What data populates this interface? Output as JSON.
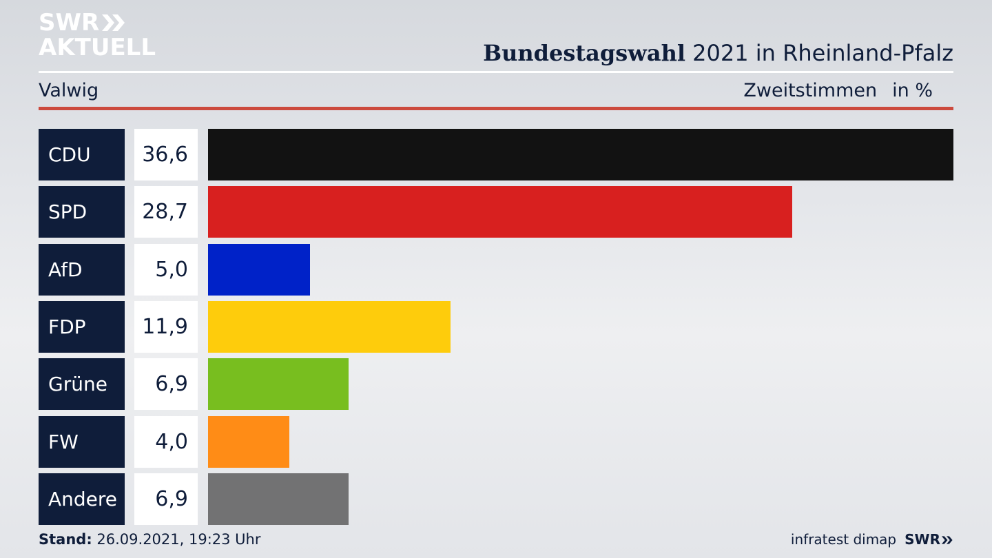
{
  "brand": {
    "line1": "SWR",
    "line2": "AKTUELL",
    "logo_color": "#ffffff"
  },
  "header": {
    "title_bold": "Bundestagswahl",
    "title_rest": " 2021 in Rheinland-Pfalz",
    "region": "Valwig",
    "measure": "Zweitstimmen",
    "unit": "in %"
  },
  "colors": {
    "rule_red": "#cc4a3d",
    "label_bg": "#0f1d3a",
    "text": "#0f1d3a"
  },
  "chart_data": {
    "type": "bar",
    "orientation": "horizontal",
    "title": "Bundestagswahl 2021 in Rheinland-Pfalz",
    "categories": [
      "CDU",
      "SPD",
      "AfD",
      "FDP",
      "Grüne",
      "FW",
      "Andere"
    ],
    "values": [
      36.6,
      28.7,
      5.0,
      11.9,
      6.9,
      4.0,
      6.9
    ],
    "value_labels": [
      "36,6",
      "28,7",
      "5,0",
      "11,9",
      "6,9",
      "4,0",
      "6,9"
    ],
    "colors": [
      "#121212",
      "#d8201f",
      "#0022c8",
      "#fecc0c",
      "#78be1f",
      "#ff8c16",
      "#727273"
    ],
    "xlim": [
      0,
      36.6
    ],
    "grid": false,
    "legend": "none"
  },
  "footer": {
    "stand_label": "Stand:",
    "stand_value": " 26.09.2021, 19:23 Uhr",
    "source": "infratest dimap",
    "source_brand": "SWR"
  }
}
